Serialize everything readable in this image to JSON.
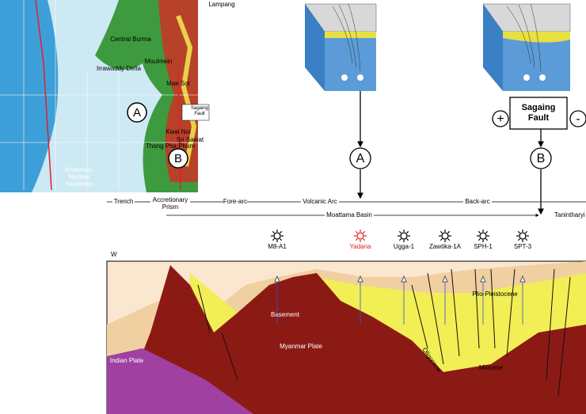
{
  "map": {
    "labels": [
      "Central Burma",
      "Irrawaddy Delta",
      "Moulmein",
      "Mae Sot",
      "Kwai Noi",
      "Sri Sawat",
      "Thong Pha Phum",
      "Andaman-Nicobar Interdeep",
      "Lampang"
    ],
    "fault_label": "Sagaing Fault",
    "marker_a": "A",
    "marker_b": "B"
  },
  "profile": {
    "marker_a": "A",
    "marker_b": "B",
    "fault_box": "Sagaing Fault",
    "plus": "+",
    "minus": "-"
  },
  "zones": [
    "Trench",
    "Accretionary Prism",
    "Fore-arc",
    "Volcanic Arc",
    "Back-arc"
  ],
  "basins": [
    "Moattama Basin",
    "Tanintharyi"
  ],
  "section": {
    "direction": "W",
    "wells": [
      "M8-A1",
      "Yadana",
      "Ugga-1",
      "Zawtika-1A",
      "SPH-1",
      "SPT-3"
    ],
    "units": [
      "Basement",
      "Myanmar Plate",
      "Indian Plate",
      "Plio-Pleistocene",
      "Miocene",
      "Oligocene"
    ]
  }
}
